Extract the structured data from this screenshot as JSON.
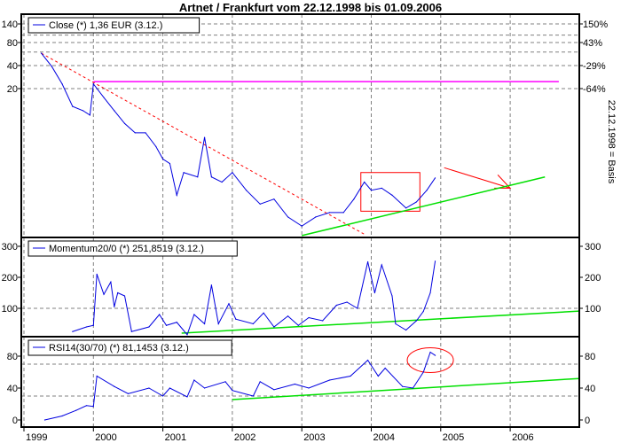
{
  "title": "Artnet / Frankfurt vom 22.12.1998 bis 01.09.2006",
  "right_label": "22.12.1998 = Basis",
  "colors": {
    "series": "#0000e0",
    "trend_green": "#00e000",
    "trend_red": "#ff0000",
    "resistance": "#ff00ff",
    "grid": "#808080"
  },
  "chart_data": [
    {
      "type": "line",
      "legend": "Close (*) 1,36 EUR (3.12.)",
      "yscale": "log",
      "yticks": [
        20,
        40,
        80,
        140
      ],
      "ygrid": [
        20,
        40,
        60,
        80,
        100,
        140
      ],
      "right_ticks": [
        {
          "value": 140,
          "label": "150%"
        },
        {
          "value": 80,
          "label": "43%"
        },
        {
          "value": 40,
          "label": "-29%"
        },
        {
          "value": 20,
          "label": "-64%"
        }
      ],
      "ylim": [
        0.23,
        190
      ],
      "x": [
        1999.25,
        1999.4,
        1999.55,
        1999.7,
        1999.85,
        1999.95,
        2000.0,
        2000.15,
        2000.3,
        2000.45,
        2000.6,
        2000.75,
        2000.9,
        2001.0,
        2001.1,
        2001.2,
        2001.3,
        2001.5,
        2001.6,
        2001.7,
        2001.85,
        2002.0,
        2002.2,
        2002.4,
        2002.6,
        2002.8,
        2003.0,
        2003.2,
        2003.4,
        2003.6,
        2003.75,
        2003.9,
        2004.0,
        2004.15,
        2004.3,
        2004.5,
        2004.65,
        2004.8,
        2004.92
      ],
      "values": [
        58,
        39,
        23,
        11.7,
        10.3,
        9,
        23,
        15.3,
        10.3,
        7,
        5.3,
        5.3,
        3.5,
        2.4,
        2.1,
        0.81,
        1.6,
        1.4,
        4.6,
        1.4,
        1.2,
        1.6,
        0.94,
        0.62,
        0.72,
        0.42,
        0.32,
        0.42,
        0.48,
        0.48,
        0.72,
        1.2,
        0.94,
        1.0,
        0.81,
        0.55,
        0.66,
        0.94,
        1.36
      ],
      "annotations": {
        "downtrend": {
          "from": [
            1999.25,
            58
          ],
          "to": [
            2003.9,
            0.25
          ]
        },
        "uptrend": {
          "from": [
            2003.0,
            0.24
          ],
          "to": [
            2006.5,
            1.4
          ]
        },
        "resistance": {
          "value": 24.7,
          "from": 2000.0,
          "to": 2006.7
        },
        "box": {
          "x": [
            2003.85,
            2004.7
          ],
          "y": [
            0.5,
            1.6
          ]
        },
        "arrow": {
          "from": [
            2005.05,
            1.85
          ],
          "to": [
            2006.0,
            1.0
          ]
        }
      }
    },
    {
      "type": "line",
      "legend": "Momentum20/0 (*) 251,8519 (3.12.)",
      "yticks": [
        100,
        200,
        300
      ],
      "ygrid": [
        100
      ],
      "ylim": [
        0,
        320
      ],
      "x": [
        1999.7,
        1999.9,
        2000.0,
        2000.05,
        2000.15,
        2000.25,
        2000.3,
        2000.35,
        2000.45,
        2000.55,
        2000.8,
        2000.95,
        2001.05,
        2001.2,
        2001.35,
        2001.45,
        2001.6,
        2001.7,
        2001.8,
        2001.95,
        2002.05,
        2002.3,
        2002.45,
        2002.6,
        2002.8,
        2002.95,
        2003.1,
        2003.3,
        2003.5,
        2003.65,
        2003.8,
        2003.95,
        2004.05,
        2004.15,
        2004.3,
        2004.35,
        2004.5,
        2004.65,
        2004.75,
        2004.85,
        2004.92
      ],
      "values": [
        25,
        40,
        45,
        210,
        145,
        185,
        105,
        150,
        140,
        25,
        40,
        80,
        45,
        55,
        15,
        80,
        50,
        175,
        50,
        115,
        65,
        50,
        85,
        40,
        75,
        45,
        70,
        60,
        110,
        120,
        100,
        250,
        150,
        240,
        140,
        50,
        30,
        60,
        90,
        150,
        252
      ],
      "annotations": {
        "uptrend": {
          "from": [
            2001.27,
            20
          ],
          "to": [
            2007.0,
            91
          ]
        }
      }
    },
    {
      "type": "line",
      "legend": "RSI14(30/70) (*) 81,1453 (3.12.)",
      "yticks": [
        0,
        40,
        80
      ],
      "ygrid": [
        30,
        70
      ],
      "ylim": [
        -9,
        104
      ],
      "x": [
        1999.3,
        1999.55,
        1999.75,
        1999.9,
        2000.0,
        2000.05,
        2000.3,
        2000.5,
        2000.8,
        2001.0,
        2001.1,
        2001.35,
        2001.45,
        2001.6,
        2001.9,
        2002.0,
        2002.3,
        2002.4,
        2002.6,
        2002.9,
        2003.1,
        2003.4,
        2003.7,
        2003.95,
        2004.1,
        2004.2,
        2004.45,
        2004.6,
        2004.75,
        2004.85,
        2004.92
      ],
      "values": [
        0,
        5,
        12,
        18,
        17,
        55,
        42,
        33,
        40,
        30,
        40,
        29,
        50,
        40,
        48,
        37,
        30,
        48,
        38,
        45,
        40,
        50,
        55,
        75,
        55,
        65,
        42,
        40,
        60,
        85,
        81
      ],
      "annotations": {
        "uptrend": {
          "from": [
            2002.0,
            25.5
          ],
          "to": [
            2007.0,
            52
          ]
        },
        "ellipse": {
          "center": [
            2004.85,
            75
          ]
        }
      }
    }
  ],
  "x_axis": {
    "ticks": [
      "1999",
      "2000",
      "2001",
      "2002",
      "2003",
      "2004",
      "2005",
      "2006"
    ],
    "range": [
      1999.0,
      2007.0
    ]
  }
}
